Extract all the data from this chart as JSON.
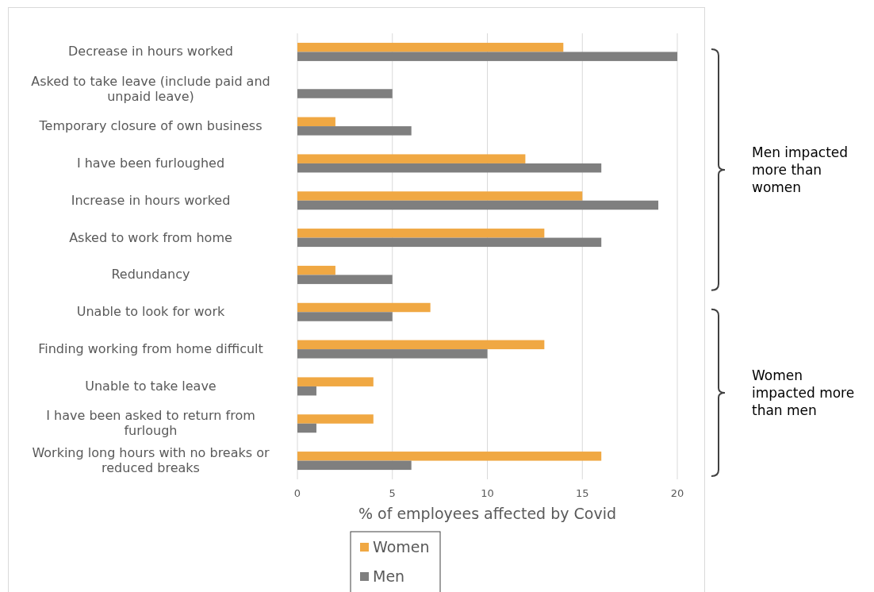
{
  "chart_data": {
    "type": "bar",
    "orientation": "horizontal",
    "xlabel": "% of employees affected by Covid",
    "categories": [
      "Decrease in hours worked",
      "Asked to take leave (include paid and unpaid leave)",
      "Temporary closure of own business",
      "I have been furloughed",
      "Increase in hours worked",
      "Asked to work from home",
      "Redundancy",
      "Unable to look for work",
      "Finding working from home difficult",
      "Unable to take leave",
      "I have been asked to return from furlough",
      "Working long hours with no breaks or reduced breaks"
    ],
    "series": [
      {
        "name": "Women",
        "color": "#f0a843",
        "values": [
          14,
          0,
          2,
          12,
          15,
          13,
          2,
          7,
          13,
          4,
          4,
          16
        ]
      },
      {
        "name": "Men",
        "color": "#7f7f7f",
        "values": [
          20,
          5,
          6,
          16,
          19,
          16,
          5,
          5,
          10,
          1,
          1,
          6
        ]
      }
    ],
    "xlim": [
      0,
      20
    ],
    "xticks": [
      0,
      5,
      10,
      15,
      20
    ],
    "grid": "x",
    "legend": "bottom",
    "annotations": [
      "Men impacted more than women",
      "Women impacted more than men"
    ]
  }
}
